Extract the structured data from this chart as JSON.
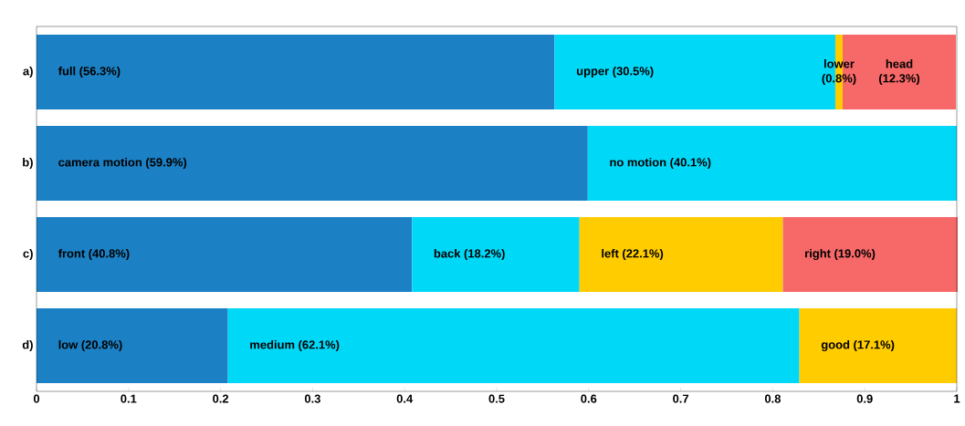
{
  "chart_data": {
    "type": "bar",
    "orientation": "horizontal",
    "stacked": true,
    "categories": [
      "a)",
      "b)",
      "c)",
      "d)"
    ],
    "series": [
      {
        "color": "#1b80c4",
        "values": [
          0.563,
          0.599,
          0.408,
          0.208
        ],
        "value_labels": [
          "full (56.3%)",
          "camera motion (59.9%)",
          "front (40.8%)",
          "low (20.8%)"
        ]
      },
      {
        "color": "#00d8f8",
        "values": [
          0.305,
          0.401,
          0.182,
          0.621
        ],
        "value_labels": [
          "upper (30.5%)",
          "no motion (40.1%)",
          "back (18.2%)",
          "medium (62.1%)"
        ]
      },
      {
        "color": "#ffcc00",
        "values": [
          0.008,
          null,
          0.221,
          0.171
        ],
        "value_labels": [
          "lower (0.8%)",
          null,
          "left (22.1%)",
          "good (17.1%)"
        ]
      },
      {
        "color": "#f76868",
        "values": [
          0.123,
          null,
          0.19,
          null
        ],
        "value_labels": [
          "head (12.3%)",
          null,
          "right (19.0%)",
          null
        ]
      }
    ],
    "xlim": [
      0,
      1
    ],
    "xticks": [
      0,
      0.1,
      0.2,
      0.3,
      0.4,
      0.5,
      0.6,
      0.7,
      0.8,
      0.9,
      1
    ],
    "grid": false
  }
}
